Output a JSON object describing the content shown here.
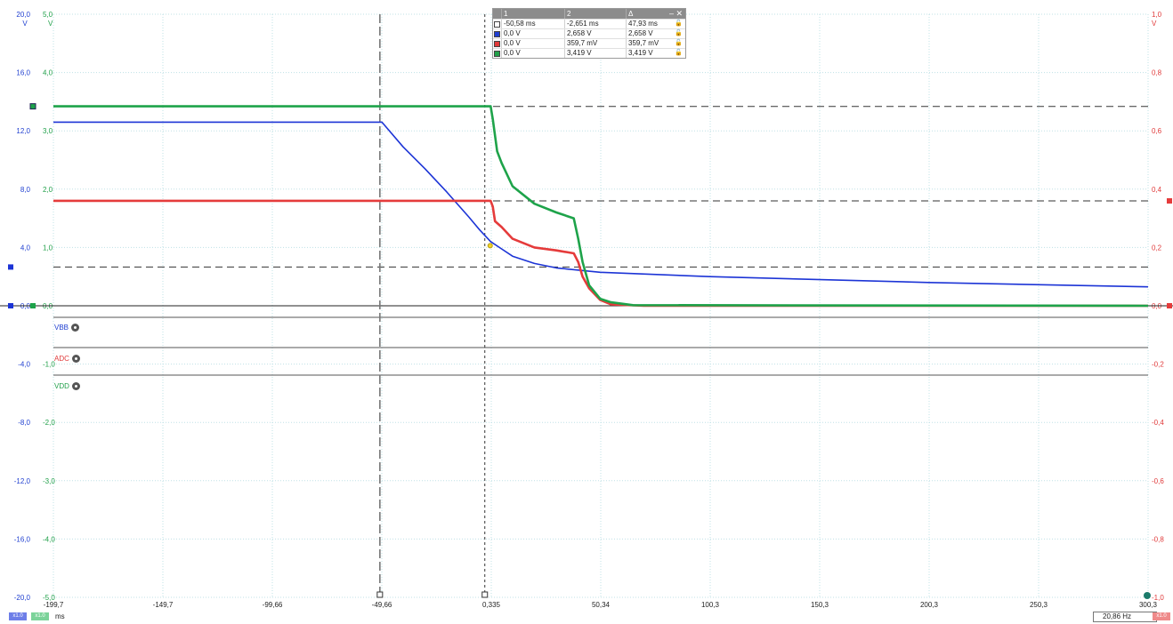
{
  "chart_data": {
    "type": "line",
    "x_ticks": [
      "-199,7",
      "-149,7",
      "-99,66",
      "-49,66",
      "0,335",
      "50,34",
      "100,3",
      "150,3",
      "200,3",
      "250,3",
      "300,3"
    ],
    "x_unit": "ms",
    "xlim": [
      -199.7,
      300.3
    ],
    "axes": [
      {
        "id": "v20",
        "color": "#1f3fd0",
        "unit": "V",
        "ticks": [
          "20,0",
          "16,0",
          "12,0",
          "8,0",
          "4,0",
          "0,0",
          "-4,0",
          "-8,0",
          "-12,0",
          "-16,0",
          "-20,0"
        ]
      },
      {
        "id": "v5",
        "color": "#21a04a",
        "unit": "V",
        "ticks": [
          "5,0",
          "4,0",
          "3,0",
          "2,0",
          "1,0",
          "0,0",
          "-1,0",
          "-2,0",
          "-3,0",
          "-4,0",
          "-5,0"
        ]
      },
      {
        "id": "v1",
        "color": "#e03a3a",
        "unit": "V",
        "ticks": [
          "1,0",
          "0,8",
          "0,6",
          "0,4",
          "0,2",
          "0,0",
          "-0,2",
          "-0,4",
          "-0,6",
          "-0,8",
          "-1,0"
        ]
      }
    ],
    "series": [
      {
        "name": "VBB",
        "color": "#1c34d6",
        "axis_ylim": [
          -20,
          20
        ],
        "x": [
          -199.7,
          -49.66,
          -40,
          -30,
          -20,
          -10,
          -5,
          0,
          5,
          10,
          20,
          30,
          50,
          100,
          200,
          300.3
        ],
        "y": [
          12.6,
          12.6,
          10.9,
          9.4,
          7.8,
          6.1,
          5.2,
          4.4,
          3.9,
          3.4,
          2.9,
          2.6,
          2.3,
          2.0,
          1.6,
          1.3
        ]
      },
      {
        "name": "ADC",
        "color": "#e53b3b",
        "axis_ylim": [
          -1,
          1
        ],
        "x": [
          -199.7,
          0,
          1,
          2,
          5,
          10,
          20,
          30,
          38,
          40,
          42,
          45,
          50,
          55,
          70,
          300.3
        ],
        "y": [
          0.36,
          0.36,
          0.34,
          0.29,
          0.27,
          0.23,
          0.2,
          0.19,
          0.18,
          0.15,
          0.1,
          0.06,
          0.02,
          0.005,
          0.0,
          0.0
        ]
      },
      {
        "name": "VDD",
        "color": "#1ea34a",
        "axis_ylim": [
          -5,
          5
        ],
        "x": [
          -199.7,
          0,
          1,
          3,
          5,
          10,
          20,
          30,
          38,
          40,
          42,
          45,
          50,
          55,
          65,
          300.3
        ],
        "y": [
          3.42,
          3.42,
          3.2,
          2.65,
          2.45,
          2.05,
          1.75,
          1.6,
          1.5,
          1.15,
          0.75,
          0.35,
          0.12,
          0.06,
          0.01,
          0.0
        ]
      }
    ],
    "cursors": {
      "vertical_ms": [
        -50.58,
        -2.651
      ],
      "horizontal": [
        {
          "axis": "v5",
          "value": 3.419
        },
        {
          "axis": "v1",
          "value": 0.3597
        },
        {
          "axis": "v20",
          "value": 2.658
        }
      ]
    },
    "grid": true
  },
  "channels": [
    {
      "name": "VBB",
      "color": "#1f3fd0"
    },
    {
      "name": "ADC",
      "color": "#e03a3a"
    },
    {
      "name": "VDD",
      "color": "#21a04a"
    }
  ],
  "cursor_table": {
    "headers": [
      "1",
      "2",
      "Δ"
    ],
    "rows": [
      {
        "swatch": "#ffffff",
        "c1": "-50,58 ms",
        "c2": "-2,651 ms",
        "c3": "47,93 ms"
      },
      {
        "swatch": "#1f3fd0",
        "c1": "0,0 V",
        "c2": "2,658 V",
        "c3": "2,658 V"
      },
      {
        "swatch": "#e03a3a",
        "c1": "0,0 V",
        "c2": "359,7 mV",
        "c3": "359,7 mV"
      },
      {
        "swatch": "#21a04a",
        "c1": "0,0 V",
        "c2": "3,419 V",
        "c3": "3,419 V"
      }
    ]
  },
  "footer": {
    "time_unit": "ms",
    "frequency": "20,86 Hz",
    "badge_blue": "x1.0",
    "badge_green": "x1.0",
    "badge_red": "x1.0"
  }
}
